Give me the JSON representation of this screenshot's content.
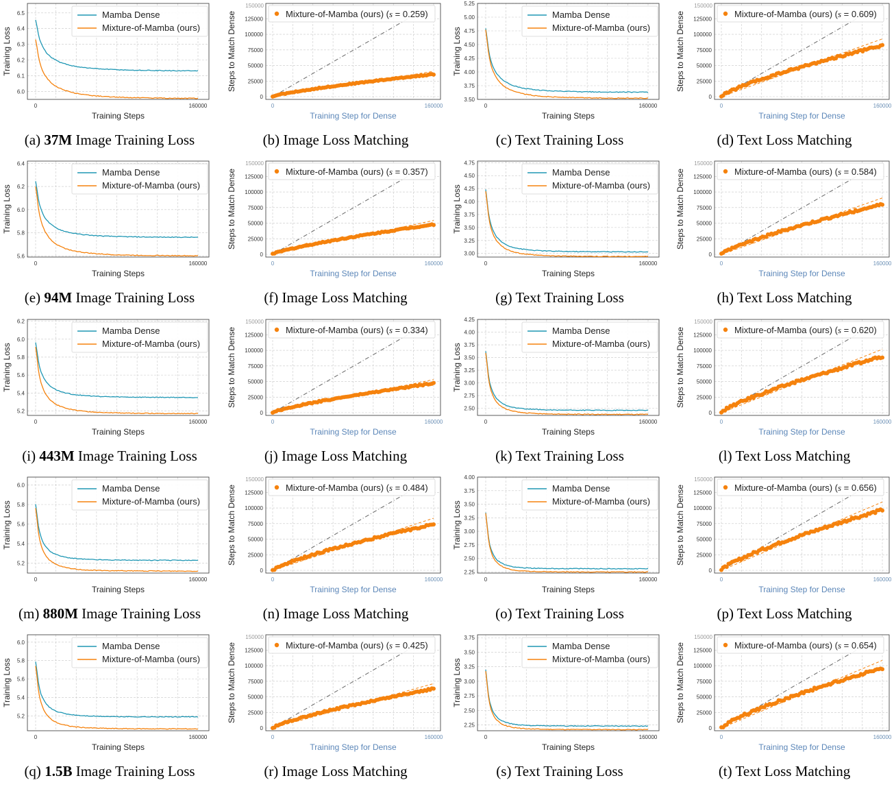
{
  "colors": {
    "dense": "#1f97b4",
    "mom": "#f5820d",
    "ref": "#666666",
    "grid": "#c8c8c8",
    "blue_label": "#5b86b8"
  },
  "legend": {
    "dense": "Mamba Dense",
    "mom": "Mixture-of-Mamba (ours)",
    "mom_s_prefix": "Mixture-of-Mamba (ours) ("
  },
  "axes": {
    "train_x": "Training Steps",
    "train_y": "Training Loss",
    "match_x": "Training Step for Dense",
    "match_y": "Steps to Match Dense"
  },
  "rows": [
    {
      "size": "37M",
      "image_loss": {
        "letter": "(a)",
        "rest": "Image Training Loss",
        "yticks": [
          "6.0",
          "6.1",
          "6.2",
          "6.3",
          "6.4",
          "6.5"
        ],
        "ylim": [
          5.95,
          6.56
        ],
        "dense": {
          "start": 6.56,
          "end": 6.13,
          "k": 3.2
        },
        "mom": {
          "start": 6.45,
          "end": 5.955,
          "k": 3.2
        }
      },
      "image_match": {
        "letter": "(b)",
        "rest": "Image Loss Matching",
        "s": "0.259",
        "end": 36000
      },
      "text_loss": {
        "letter": "(c)",
        "rest": "Text Training Loss",
        "yticks": [
          "3.50",
          "3.75",
          "4.00",
          "4.25",
          "4.50",
          "4.75",
          "5.00",
          "5.25"
        ],
        "ylim": [
          3.5,
          5.25
        ],
        "dense": {
          "start": 5.25,
          "end": 3.63,
          "k": 3.8
        },
        "mom": {
          "start": 5.25,
          "end": 3.52,
          "k": 3.8
        }
      },
      "text_match": {
        "letter": "(d)",
        "rest": "Text Loss Matching",
        "s": "0.609",
        "end": 82000
      }
    },
    {
      "size": "94M",
      "image_loss": {
        "letter": "(e)",
        "rest": "Image Training Loss",
        "yticks": [
          "5.6",
          "5.8",
          "6.0",
          "6.2",
          "6.4"
        ],
        "ylim": [
          5.59,
          6.42
        ],
        "dense": {
          "start": 6.42,
          "end": 5.76,
          "k": 3.6
        },
        "mom": {
          "start": 6.42,
          "end": 5.6,
          "k": 3.6
        }
      },
      "image_match": {
        "letter": "(f)",
        "rest": "Image Loss Matching",
        "s": "0.357",
        "end": 48000
      },
      "text_loss": {
        "letter": "(g)",
        "rest": "Text Training Loss",
        "yticks": [
          "3.00",
          "3.25",
          "3.50",
          "3.75",
          "4.00",
          "4.25",
          "4.50",
          "4.75"
        ],
        "ylim": [
          2.93,
          4.78
        ],
        "dense": {
          "start": 4.78,
          "end": 3.03,
          "k": 4.4
        },
        "mom": {
          "start": 4.78,
          "end": 2.94,
          "k": 4.4
        }
      },
      "text_match": {
        "letter": "(h)",
        "rest": "Text Loss Matching",
        "s": "0.584",
        "end": 80000
      }
    },
    {
      "size": "443M",
      "image_loss": {
        "letter": "(i)",
        "rest": "Image Training Loss",
        "yticks": [
          "5.2",
          "5.4",
          "5.6",
          "5.8",
          "6.0",
          "6.2"
        ],
        "ylim": [
          5.15,
          6.22
        ],
        "dense": {
          "start": 6.22,
          "end": 5.35,
          "k": 4.0
        },
        "mom": {
          "start": 6.22,
          "end": 5.17,
          "k": 4.0
        }
      },
      "image_match": {
        "letter": "(j)",
        "rest": "Image Loss Matching",
        "s": "0.334",
        "end": 47000
      },
      "text_loss": {
        "letter": "(k)",
        "rest": "Text Training Loss",
        "yticks": [
          "2.50",
          "2.75",
          "3.00",
          "3.25",
          "3.50",
          "3.75",
          "4.00",
          "4.25"
        ],
        "ylim": [
          2.36,
          4.25
        ],
        "dense": {
          "start": 4.25,
          "end": 2.46,
          "k": 5.0
        },
        "mom": {
          "start": 4.25,
          "end": 2.38,
          "k": 5.0
        }
      },
      "text_match": {
        "letter": "(l)",
        "rest": "Text Loss Matching",
        "s": "0.620",
        "end": 90000
      }
    },
    {
      "size": "880M",
      "image_loss": {
        "letter": "(m)",
        "rest": "Image Training Loss",
        "yticks": [
          "5.2",
          "5.4",
          "5.6",
          "5.8",
          "6.0"
        ],
        "ylim": [
          5.1,
          6.08
        ],
        "dense": {
          "start": 6.08,
          "end": 5.23,
          "k": 4.6
        },
        "mom": {
          "start": 6.08,
          "end": 5.12,
          "k": 4.6
        }
      },
      "image_match": {
        "letter": "(n)",
        "rest": "Image Loss Matching",
        "s": "0.484",
        "end": 74000
      },
      "text_loss": {
        "letter": "(o)",
        "rest": "Text Training Loss",
        "yticks": [
          "2.25",
          "2.50",
          "2.75",
          "3.00",
          "3.25",
          "3.50",
          "3.75",
          "4.00"
        ],
        "ylim": [
          2.23,
          4.0
        ],
        "dense": {
          "start": 4.0,
          "end": 2.31,
          "k": 5.6
        },
        "mom": {
          "start": 4.0,
          "end": 2.25,
          "k": 5.6
        }
      },
      "text_match": {
        "letter": "(p)",
        "rest": "Text Loss Matching",
        "s": "0.656",
        "end": 97000
      }
    },
    {
      "size": "1.5B",
      "image_loss": {
        "letter": "(q)",
        "rest": "Image Training Loss",
        "yticks": [
          "5.2",
          "5.4",
          "5.6",
          "5.8",
          "6.0"
        ],
        "ylim": [
          5.04,
          6.08
        ],
        "dense": {
          "start": 6.08,
          "end": 5.19,
          "k": 4.6
        },
        "mom": {
          "start": 6.08,
          "end": 5.06,
          "k": 4.6
        }
      },
      "image_match": {
        "letter": "(r)",
        "rest": "Image Loss Matching",
        "s": "0.425",
        "end": 63000
      },
      "text_loss": {
        "letter": "(s)",
        "rest": "Text Training Loss",
        "yticks": [
          "2.25",
          "2.50",
          "2.75",
          "3.00",
          "3.25",
          "3.50",
          "3.75"
        ],
        "ylim": [
          2.15,
          3.8
        ],
        "dense": {
          "start": 3.8,
          "end": 2.23,
          "k": 5.6
        },
        "mom": {
          "start": 3.8,
          "end": 2.17,
          "k": 5.6
        }
      },
      "text_match": {
        "letter": "(t)",
        "rest": "Text Loss Matching",
        "s": "0.654",
        "end": 96000
      }
    }
  ],
  "match_yticks": [
    "0",
    "25000",
    "50000",
    "75000",
    "100000",
    "125000",
    "150000"
  ],
  "x_ticks": [
    "0",
    "160000"
  ],
  "chart_data": [
    {
      "type": "line",
      "title": "(a) 37M Image Training Loss",
      "xlabel": "Training Steps",
      "ylabel": "Training Loss",
      "series": [
        {
          "name": "Mamba Dense",
          "end": 6.13
        },
        {
          "name": "Mixture-of-Mamba (ours)",
          "end": 5.955
        }
      ],
      "xlim": [
        0,
        160000
      ]
    },
    {
      "type": "scatter",
      "title": "(b) Image Loss Matching",
      "xlabel": "Training Step for Dense",
      "ylabel": "Steps to Match Dense",
      "slope_s": 0.259,
      "end_y": 36000,
      "xlim": [
        0,
        160000
      ]
    },
    {
      "type": "line",
      "title": "(c) Text Training Loss",
      "series": [
        {
          "name": "Mamba Dense",
          "end": 3.63
        },
        {
          "name": "Mixture-of-Mamba (ours)",
          "end": 3.52
        }
      ]
    },
    {
      "type": "scatter",
      "title": "(d) Text Loss Matching",
      "slope_s": 0.609,
      "end_y": 82000
    },
    {
      "type": "line",
      "title": "(e) 94M Image Training Loss",
      "series": [
        {
          "name": "Mamba Dense",
          "end": 5.76
        },
        {
          "name": "Mixture-of-Mamba (ours)",
          "end": 5.6
        }
      ]
    },
    {
      "type": "scatter",
      "title": "(f) Image Loss Matching",
      "slope_s": 0.357,
      "end_y": 48000
    },
    {
      "type": "line",
      "title": "(g) Text Training Loss",
      "series": [
        {
          "name": "Mamba Dense",
          "end": 3.03
        },
        {
          "name": "Mixture-of-Mamba (ours)",
          "end": 2.94
        }
      ]
    },
    {
      "type": "scatter",
      "title": "(h) Text Loss Matching",
      "slope_s": 0.584,
      "end_y": 80000
    },
    {
      "type": "line",
      "title": "(i) 443M Image Training Loss",
      "series": [
        {
          "name": "Mamba Dense",
          "end": 5.35
        },
        {
          "name": "Mixture-of-Mamba (ours)",
          "end": 5.17
        }
      ]
    },
    {
      "type": "scatter",
      "title": "(j) Image Loss Matching",
      "slope_s": 0.334,
      "end_y": 47000
    },
    {
      "type": "line",
      "title": "(k) Text Training Loss",
      "series": [
        {
          "name": "Mamba Dense",
          "end": 2.46
        },
        {
          "name": "Mixture-of-Mamba (ours)",
          "end": 2.38
        }
      ]
    },
    {
      "type": "scatter",
      "title": "(l) Text Loss Matching",
      "slope_s": 0.62,
      "end_y": 90000
    },
    {
      "type": "line",
      "title": "(m) 880M Image Training Loss",
      "series": [
        {
          "name": "Mamba Dense",
          "end": 5.23
        },
        {
          "name": "Mixture-of-Mamba (ours)",
          "end": 5.12
        }
      ]
    },
    {
      "type": "scatter",
      "title": "(n) Image Loss Matching",
      "slope_s": 0.484,
      "end_y": 74000
    },
    {
      "type": "line",
      "title": "(o) Text Training Loss",
      "series": [
        {
          "name": "Mamba Dense",
          "end": 2.31
        },
        {
          "name": "Mixture-of-Mamba (ours)",
          "end": 2.25
        }
      ]
    },
    {
      "type": "scatter",
      "title": "(p) Text Loss Matching",
      "slope_s": 0.656,
      "end_y": 97000
    },
    {
      "type": "line",
      "title": "(q) 1.5B Image Training Loss",
      "series": [
        {
          "name": "Mamba Dense",
          "end": 5.19
        },
        {
          "name": "Mixture-of-Mamba (ours)",
          "end": 5.06
        }
      ]
    },
    {
      "type": "scatter",
      "title": "(r) Image Loss Matching",
      "slope_s": 0.425,
      "end_y": 63000
    },
    {
      "type": "line",
      "title": "(s) Text Training Loss",
      "series": [
        {
          "name": "Mamba Dense",
          "end": 2.23
        },
        {
          "name": "Mixture-of-Mamba (ours)",
          "end": 2.17
        }
      ]
    },
    {
      "type": "scatter",
      "title": "(t) Text Loss Matching",
      "slope_s": 0.654,
      "end_y": 96000
    }
  ]
}
